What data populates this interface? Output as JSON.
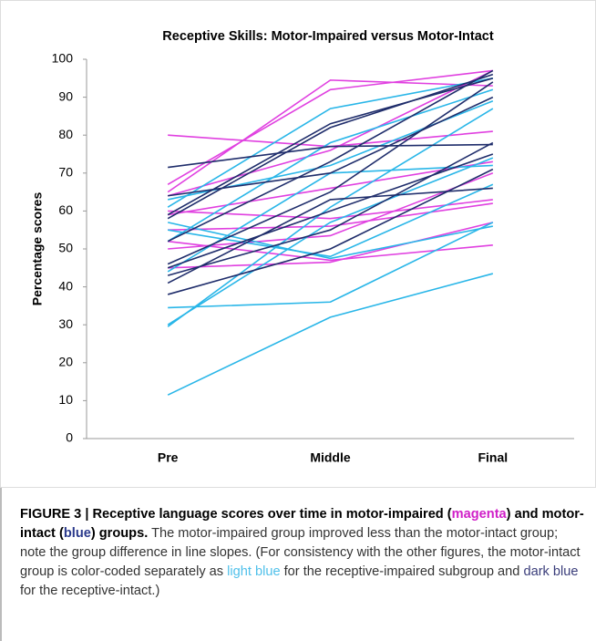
{
  "chart_data": {
    "type": "line",
    "title": "Receptive Skills: Motor-Impaired versus Motor-Intact",
    "y_label": "Percentage scores",
    "categories": [
      "Pre",
      "Middle",
      "Final"
    ],
    "ylim": [
      0,
      100
    ],
    "yticks": [
      0,
      10,
      20,
      30,
      40,
      50,
      60,
      70,
      80,
      90,
      100
    ],
    "series": [
      {
        "color": "#e040e0",
        "values": [
          80,
          77,
          81
        ]
      },
      {
        "color": "#e040e0",
        "values": [
          67,
          92,
          97
        ]
      },
      {
        "color": "#e040e0",
        "values": [
          65,
          94.5,
          93
        ]
      },
      {
        "color": "#e040e0",
        "values": [
          64,
          76,
          97
        ]
      },
      {
        "color": "#e040e0",
        "values": [
          60,
          58,
          63
        ]
      },
      {
        "color": "#e040e0",
        "values": [
          59,
          66,
          73
        ]
      },
      {
        "color": "#e040e0",
        "values": [
          52,
          47,
          51
        ]
      },
      {
        "color": "#e040e0",
        "values": [
          50,
          53.5,
          70
        ]
      },
      {
        "color": "#e040e0",
        "values": [
          45,
          46.5,
          57
        ]
      },
      {
        "color": "#e040e0",
        "values": [
          55,
          56,
          62
        ]
      },
      {
        "color": "#29b6e8",
        "values": [
          11.5,
          32,
          43.5
        ]
      },
      {
        "color": "#29b6e8",
        "values": [
          34.5,
          36,
          57
        ]
      },
      {
        "color": "#29b6e8",
        "values": [
          30,
          57,
          74
        ]
      },
      {
        "color": "#29b6e8",
        "values": [
          29.5,
          61,
          87
        ]
      },
      {
        "color": "#29b6e8",
        "values": [
          57,
          47.5,
          56
        ]
      },
      {
        "color": "#29b6e8",
        "values": [
          55,
          48,
          67
        ]
      },
      {
        "color": "#29b6e8",
        "values": [
          44,
          70,
          72
        ]
      },
      {
        "color": "#29b6e8",
        "values": [
          61,
          87,
          95
        ]
      },
      {
        "color": "#29b6e8",
        "values": [
          52,
          78,
          92
        ]
      },
      {
        "color": "#29b6e8",
        "values": [
          63,
          72,
          89
        ]
      },
      {
        "color": "#1f2d6b",
        "values": [
          71.5,
          77,
          77.5
        ]
      },
      {
        "color": "#1f2d6b",
        "values": [
          38,
          50,
          71
        ]
      },
      {
        "color": "#1f2d6b",
        "values": [
          41,
          63,
          66
        ]
      },
      {
        "color": "#1f2d6b",
        "values": [
          46,
          65,
          94
        ]
      },
      {
        "color": "#1f2d6b",
        "values": [
          52,
          73,
          97
        ]
      },
      {
        "color": "#1f2d6b",
        "values": [
          59,
          83,
          95
        ]
      },
      {
        "color": "#1f2d6b",
        "values": [
          58,
          82,
          96
        ]
      },
      {
        "color": "#1f2d6b",
        "values": [
          64,
          70,
          90
        ]
      },
      {
        "color": "#1f2d6b",
        "values": [
          45,
          60,
          75
        ]
      },
      {
        "color": "#1f2d6b",
        "values": [
          43,
          55,
          78
        ]
      }
    ]
  },
  "caption": {
    "parts": [
      "FIGURE 3 | Receptive language scores over time in motor-impaired (",
      "magenta",
      ") and motor-intact (",
      "blue",
      ") groups.",
      " The motor-impaired group improved less than the motor-intact group; note the group difference in line slopes. (For consistency with the other figures, the motor-intact group is color-coded separately as ",
      "light blue",
      " for the receptive-impaired subgroup and ",
      "dark blue",
      " for the receptive-intact.)"
    ]
  }
}
